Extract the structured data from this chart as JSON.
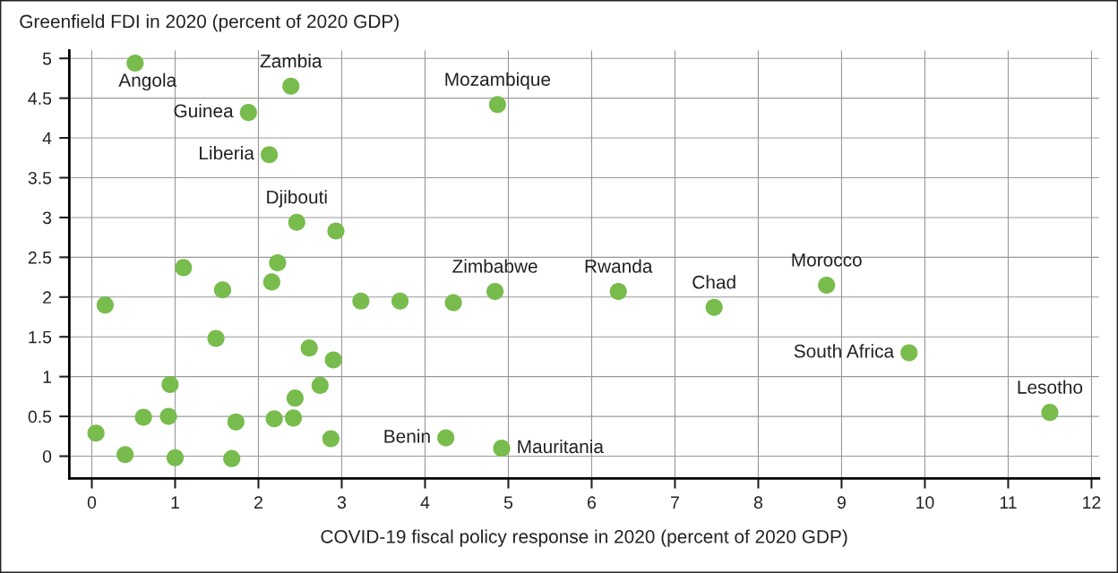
{
  "chart_data": {
    "type": "scatter",
    "ylabel": "Greenfield FDI in 2020 (percent of 2020 GDP)",
    "xlabel": "COVID-19 fiscal policy response in 2020 (percent of 2020 GDP)",
    "series": [
      {
        "color": "#77bc4c",
        "x": [
          0.52,
          2.39,
          4.87,
          1.88,
          2.13,
          2.46,
          2.93,
          1.1,
          2.23,
          2.16,
          1.57,
          0.16,
          3.23,
          3.7,
          4.34,
          4.84,
          1.49,
          2.61,
          2.9,
          0.94,
          2.74,
          2.44,
          0.62,
          0.92,
          1.73,
          2.19,
          2.42,
          0.05,
          2.87,
          4.25,
          4.92,
          0.4,
          1.0,
          1.68,
          6.32,
          7.47,
          8.82,
          9.81,
          11.5
        ],
        "values": [
          4.94,
          4.65,
          4.42,
          4.32,
          3.79,
          2.94,
          2.83,
          2.37,
          2.43,
          2.19,
          2.09,
          1.9,
          1.95,
          1.95,
          1.93,
          2.07,
          1.48,
          1.36,
          1.21,
          0.9,
          0.89,
          0.73,
          0.49,
          0.5,
          0.43,
          0.47,
          0.48,
          0.29,
          0.22,
          0.23,
          0.1,
          0.02,
          -0.02,
          -0.03,
          2.07,
          1.87,
          2.15,
          1.3,
          0.55
        ]
      }
    ],
    "annotations": [
      {
        "text": "Angola",
        "x": 0.52,
        "y": 4.94
      },
      {
        "text": "Zambia",
        "x": 2.39,
        "y": 4.65
      },
      {
        "text": "Mozambique",
        "x": 4.87,
        "y": 4.42
      },
      {
        "text": "Guinea",
        "x": 1.88,
        "y": 4.32
      },
      {
        "text": "Liberia",
        "x": 2.13,
        "y": 3.79
      },
      {
        "text": "Djibouti",
        "x": 2.46,
        "y": 2.94
      },
      {
        "text": "Zimbabwe",
        "x": 4.84,
        "y": 2.07
      },
      {
        "text": "Rwanda",
        "x": 6.32,
        "y": 2.07
      },
      {
        "text": "Chad",
        "x": 7.47,
        "y": 1.87
      },
      {
        "text": "Morocco",
        "x": 8.82,
        "y": 2.15
      },
      {
        "text": "South Africa",
        "x": 9.81,
        "y": 1.3
      },
      {
        "text": "Lesotho",
        "x": 11.5,
        "y": 0.55
      },
      {
        "text": "Benin",
        "x": 4.25,
        "y": 0.23
      },
      {
        "text": "Mauritania",
        "x": 4.92,
        "y": 0.1
      }
    ],
    "xlim": [
      -0.27,
      12.09
    ],
    "ylim": [
      -0.28,
      5.1
    ],
    "xticks": [
      0,
      1,
      2,
      3,
      4,
      5,
      6,
      7,
      8,
      9,
      10,
      11,
      12
    ],
    "yticks": [
      0,
      0.5,
      1,
      1.5,
      2,
      2.5,
      3,
      3.5,
      4,
      4.5,
      5
    ],
    "grid": true,
    "marker": "circle"
  }
}
